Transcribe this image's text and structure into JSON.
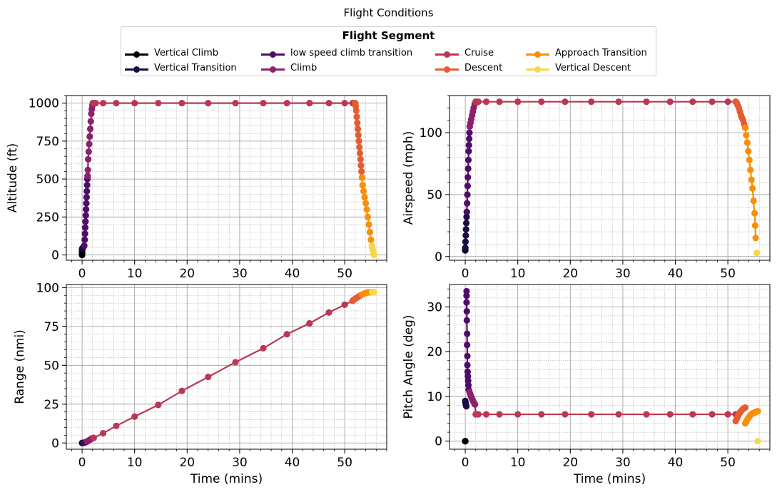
{
  "figure": {
    "title": "Flight Conditions",
    "legend_title": "Flight Segment"
  },
  "segments": [
    {
      "name": "Vertical Climb",
      "color": "#000004"
    },
    {
      "name": "Vertical Transition",
      "color": "#1b0c41"
    },
    {
      "name": "low speed climb transition",
      "color": "#4f0c6b"
    },
    {
      "name": "Climb",
      "color": "#8b226a"
    },
    {
      "name": "Cruise",
      "color": "#bb3754"
    },
    {
      "name": "Descent",
      "color": "#e55c30"
    },
    {
      "name": "Approach Transition",
      "color": "#f98e09"
    },
    {
      "name": "Vertical Descent",
      "color": "#f6d746"
    }
  ],
  "chart_data": [
    {
      "type": "line",
      "ylabel": "Altitude (ft)",
      "xlabel": "",
      "xlim": [
        -3,
        58
      ],
      "ylim": [
        -35,
        1050
      ],
      "xticks": [
        0,
        10,
        20,
        30,
        40,
        50
      ],
      "yticks": [
        0,
        250,
        500,
        750,
        1000
      ],
      "grid": true,
      "series": [
        {
          "name": "Vertical Climb",
          "x": [
            0,
            0,
            0,
            0,
            0
          ],
          "y": [
            0,
            10,
            20,
            30,
            40
          ]
        },
        {
          "name": "Vertical Transition",
          "x": [
            0,
            0.1,
            0.2,
            0.3,
            0.4
          ],
          "y": [
            40,
            45,
            50,
            55,
            60
          ]
        },
        {
          "name": "low speed climb transition",
          "x": [
            0.4,
            0.5,
            0.55,
            0.6,
            0.65,
            0.7,
            0.75,
            0.8,
            0.85,
            0.9,
            0.95,
            1.0,
            1.05
          ],
          "y": [
            60,
            100,
            140,
            180,
            220,
            260,
            300,
            340,
            380,
            420,
            460,
            500,
            520
          ]
        },
        {
          "name": "Climb",
          "x": [
            1.05,
            1.1,
            1.15,
            1.25,
            1.35,
            1.45,
            1.55,
            1.65,
            1.75,
            1.85,
            1.95,
            2.05,
            2.15
          ],
          "y": [
            520,
            560,
            630,
            680,
            730,
            780,
            830,
            880,
            930,
            960,
            985,
            1000,
            1000
          ]
        },
        {
          "name": "Cruise",
          "x": [
            2.15,
            2.6,
            4.0,
            6.5,
            10.0,
            14.5,
            19.0,
            24.0,
            29.2,
            34.5,
            39.0,
            43.3,
            47.0,
            50.0,
            51.5,
            52.0
          ],
          "y": [
            1000,
            1000,
            1000,
            1000,
            1000,
            1000,
            1000,
            1000,
            1000,
            1000,
            1000,
            1000,
            1000,
            1000,
            1000,
            1000
          ]
        },
        {
          "name": "Descent",
          "x": [
            52.0,
            52.1,
            52.2,
            52.3,
            52.4,
            52.5,
            52.6,
            52.7,
            52.8,
            52.9,
            53.0,
            53.1,
            53.2,
            53.3
          ],
          "y": [
            1000,
            980,
            950,
            910,
            870,
            830,
            790,
            750,
            710,
            670,
            630,
            590,
            550,
            510
          ]
        },
        {
          "name": "Approach Transition",
          "x": [
            53.3,
            53.4,
            53.6,
            53.8,
            54.0,
            54.2,
            54.4,
            54.6,
            54.8,
            55.0,
            55.2
          ],
          "y": [
            510,
            460,
            420,
            380,
            340,
            300,
            250,
            200,
            150,
            100,
            60
          ]
        },
        {
          "name": "Vertical Descent",
          "x": [
            55.2,
            55.3,
            55.4,
            55.5,
            55.5,
            55.6
          ],
          "y": [
            60,
            40,
            25,
            15,
            5,
            0
          ]
        }
      ]
    },
    {
      "type": "line",
      "ylabel": "Airspeed (mph)",
      "xlabel": "",
      "xlim": [
        -3,
        58
      ],
      "ylim": [
        -3,
        130
      ],
      "xticks": [
        0,
        10,
        20,
        30,
        40,
        50
      ],
      "yticks": [
        0,
        50,
        100
      ],
      "grid": true,
      "series": [
        {
          "name": "Vertical Climb",
          "x": [
            0,
            0,
            0
          ],
          "y": [
            5,
            6,
            7
          ]
        },
        {
          "name": "Vertical Transition",
          "x": [
            0,
            0.05,
            0.1,
            0.15,
            0.2,
            0.25,
            0.3
          ],
          "y": [
            7,
            12,
            17,
            22,
            27,
            32,
            36
          ]
        },
        {
          "name": "low speed climb transition",
          "x": [
            0.3,
            0.35,
            0.4,
            0.45,
            0.5,
            0.55,
            0.6,
            0.65,
            0.7,
            0.75,
            0.8,
            0.85
          ],
          "y": [
            36,
            43,
            50,
            57,
            64,
            71,
            78,
            85,
            90,
            95,
            100,
            105
          ]
        },
        {
          "name": "Climb",
          "x": [
            0.85,
            1.0,
            1.15,
            1.3,
            1.45,
            1.6,
            1.8,
            2.0
          ],
          "y": [
            105,
            108,
            111,
            114,
            117,
            120,
            123,
            125
          ]
        },
        {
          "name": "Cruise",
          "x": [
            2.0,
            2.5,
            4.0,
            6.5,
            10.0,
            14.5,
            19.0,
            24.0,
            29.2,
            34.5,
            39.0,
            43.3,
            47.0,
            50.0,
            51.5
          ],
          "y": [
            125,
            125,
            125,
            125,
            125,
            125,
            125,
            125,
            125,
            125,
            125,
            125,
            125,
            125,
            125
          ]
        },
        {
          "name": "Descent",
          "x": [
            51.5,
            51.7,
            51.9,
            52.1,
            52.3,
            52.5,
            52.7,
            52.9,
            53.1,
            53.3
          ],
          "y": [
            125,
            124,
            122,
            120,
            117,
            114,
            112,
            110,
            107,
            104
          ]
        },
        {
          "name": "Approach Transition",
          "x": [
            53.3,
            53.5,
            53.7,
            53.9,
            54.1,
            54.3,
            54.5,
            54.7,
            54.9,
            55.1,
            55.2,
            55.3
          ],
          "y": [
            104,
            98,
            92,
            85,
            78,
            70,
            62,
            55,
            45,
            35,
            25,
            15
          ]
        },
        {
          "name": "Vertical Descent",
          "x": [
            55.5
          ],
          "y": [
            3
          ]
        }
      ]
    },
    {
      "type": "line",
      "ylabel": "Range (nmi)",
      "xlabel": "Time (mins)",
      "xlim": [
        -3,
        58
      ],
      "ylim": [
        -4,
        102
      ],
      "xticks": [
        0,
        10,
        20,
        30,
        40,
        50
      ],
      "yticks": [
        0,
        25,
        50,
        75,
        100
      ],
      "grid": true,
      "series": [
        {
          "name": "Vertical Climb",
          "x": [
            0,
            0.1
          ],
          "y": [
            0,
            0
          ]
        },
        {
          "name": "Vertical Transition",
          "x": [
            0.1,
            0.2,
            0.3,
            0.4
          ],
          "y": [
            0,
            0,
            0.1,
            0.2
          ]
        },
        {
          "name": "low speed climb transition",
          "x": [
            0.4,
            0.6,
            0.8,
            1.0
          ],
          "y": [
            0.2,
            0.4,
            0.7,
            1.0
          ]
        },
        {
          "name": "Climb",
          "x": [
            1.0,
            1.2,
            1.4,
            1.6,
            1.8,
            2.0,
            2.2
          ],
          "y": [
            1.0,
            1.5,
            1.9,
            2.3,
            2.7,
            3.0,
            3.3
          ]
        },
        {
          "name": "Cruise",
          "x": [
            2.2,
            4.0,
            6.5,
            10.0,
            14.5,
            19.0,
            24.0,
            29.2,
            34.5,
            39.0,
            43.3,
            47.0,
            50.0,
            51.5
          ],
          "y": [
            3.3,
            6.3,
            11.0,
            17.0,
            24.5,
            33.5,
            42.5,
            52.0,
            61.0,
            70.0,
            77.0,
            84.0,
            89.0,
            91.5
          ]
        },
        {
          "name": "Descent",
          "x": [
            51.5,
            51.8,
            52.1,
            52.4,
            52.7,
            53.0,
            53.3
          ],
          "y": [
            91.5,
            92.3,
            93.0,
            93.7,
            94.4,
            95.0,
            95.5
          ]
        },
        {
          "name": "Approach Transition",
          "x": [
            53.3,
            53.6,
            53.9,
            54.2,
            54.5,
            54.8,
            55.1
          ],
          "y": [
            95.5,
            96.0,
            96.4,
            96.7,
            96.9,
            97.0,
            97.1
          ]
        },
        {
          "name": "Vertical Descent",
          "x": [
            55.2,
            55.4,
            55.6
          ],
          "y": [
            97.1,
            97.1,
            97.1
          ]
        }
      ]
    },
    {
      "type": "line",
      "ylabel": "Pitch Angle (deg)",
      "xlabel": "Time (mins)",
      "xlim": [
        -3,
        58
      ],
      "ylim": [
        -1.8,
        35
      ],
      "xticks": [
        0,
        10,
        20,
        30,
        40,
        50
      ],
      "yticks": [
        0,
        10,
        20,
        30
      ],
      "grid": true,
      "series": [
        {
          "name": "Vertical Climb",
          "x": [
            0,
            0,
            0
          ],
          "y": [
            0,
            0,
            0
          ]
        },
        {
          "name": "Vertical Transition",
          "x": [
            0,
            0.05,
            0.1,
            0.15,
            0.2
          ],
          "y": [
            9.0,
            8.6,
            8.3,
            8.0,
            7.8
          ]
        },
        {
          "name": "low speed climb transition",
          "x": [
            0.25,
            0.25,
            0.25,
            0.3,
            0.3,
            0.35,
            0.35,
            0.4,
            0.4,
            0.45,
            0.5,
            0.55,
            0.6,
            0.65
          ],
          "y": [
            33.5,
            32.5,
            31.0,
            29.0,
            27.0,
            24.0,
            21.5,
            19.0,
            17.0,
            15.5,
            14.5,
            13.5,
            12.5,
            11.5
          ]
        },
        {
          "name": "Climb",
          "x": [
            0.8,
            0.95,
            1.1,
            1.25,
            1.4,
            1.55,
            1.7,
            1.85,
            2.0
          ],
          "y": [
            11.0,
            10.5,
            10.0,
            9.6,
            9.2,
            8.8,
            8.5,
            8.2,
            6.0
          ]
        },
        {
          "name": "Cruise",
          "x": [
            2.0,
            2.5,
            4.0,
            6.5,
            10.0,
            14.5,
            19.0,
            24.0,
            29.2,
            34.5,
            39.0,
            43.3,
            47.0,
            50.0,
            51.5
          ],
          "y": [
            6,
            6,
            6,
            6,
            6,
            6,
            6,
            6,
            6,
            6,
            6,
            6,
            6,
            6,
            6
          ]
        },
        {
          "name": "Descent",
          "x": [
            51.5,
            51.7,
            51.9,
            52.1,
            52.3,
            52.5,
            52.7,
            52.9,
            53.1,
            53.3
          ],
          "y": [
            4.5,
            5.0,
            5.5,
            6.0,
            6.4,
            6.7,
            7.0,
            7.2,
            7.4,
            7.5
          ]
        },
        {
          "name": "Approach Transition",
          "x": [
            53.3,
            53.5,
            53.7,
            53.9,
            54.1,
            54.3,
            54.5,
            54.7,
            54.9,
            55.1,
            55.3,
            55.5,
            55.7
          ],
          "y": [
            4.0,
            4.3,
            4.8,
            5.2,
            5.5,
            5.8,
            6.0,
            6.2,
            6.3,
            6.4,
            6.5,
            6.6,
            6.7
          ]
        },
        {
          "name": "Vertical Descent",
          "x": [
            55.7
          ],
          "y": [
            0
          ]
        }
      ]
    }
  ]
}
